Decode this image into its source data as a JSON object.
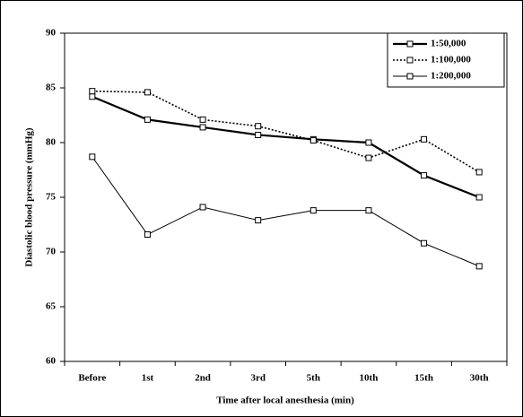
{
  "chart_data": {
    "type": "line",
    "x_label": "Time after local anesthesia (min)",
    "y_label": "Diastolic blood pressure (mmHg)",
    "categories": [
      "Before",
      "1st",
      "2nd",
      "3rd",
      "5th",
      "10th",
      "15th",
      "30th"
    ],
    "series": [
      {
        "name": "1:50,000",
        "color": "#000000",
        "line_width": 2.2,
        "dotted": false,
        "values": [
          84.2,
          82.1,
          81.4,
          80.7,
          80.3,
          80.0,
          77.0,
          75.0
        ]
      },
      {
        "name": "1:100,000",
        "color": "#000000",
        "line_width": 1.6,
        "dotted": true,
        "values": [
          84.7,
          84.6,
          82.1,
          81.5,
          80.2,
          78.6,
          80.3,
          77.3
        ]
      },
      {
        "name": "1:200,000",
        "color": "#000000",
        "line_width": 1,
        "dotted": false,
        "values": [
          78.7,
          71.6,
          74.1,
          72.9,
          73.8,
          73.8,
          70.8,
          68.7
        ]
      }
    ],
    "ylim": [
      60,
      90
    ],
    "yticks": [
      60,
      65,
      70,
      75,
      80,
      85,
      90
    ],
    "grid": false,
    "legend": "top-right"
  }
}
